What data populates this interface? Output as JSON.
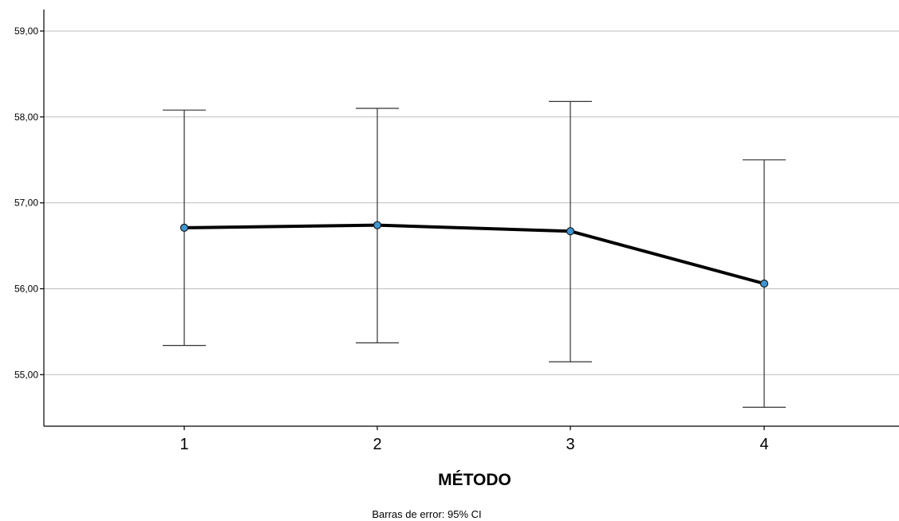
{
  "chart_data": {
    "type": "line",
    "categories": [
      "1",
      "2",
      "3",
      "4"
    ],
    "values": [
      56.71,
      56.74,
      56.67,
      56.06
    ],
    "ci_lower": [
      55.34,
      55.37,
      55.15,
      54.62
    ],
    "ci_upper": [
      58.08,
      58.1,
      58.18,
      57.5
    ],
    "xlabel": "MÉTODO",
    "ylabel": "",
    "ylim": [
      54.4,
      59.25
    ],
    "yticks": [
      55,
      56,
      57,
      58,
      59
    ],
    "ytick_labels": [
      "55,00",
      "56,00",
      "57,00",
      "58,00",
      "59,00"
    ],
    "footnote": "Barras de error: 95% CI",
    "grid": true,
    "line_color": "#000000",
    "marker_color": "#3d97d3"
  }
}
